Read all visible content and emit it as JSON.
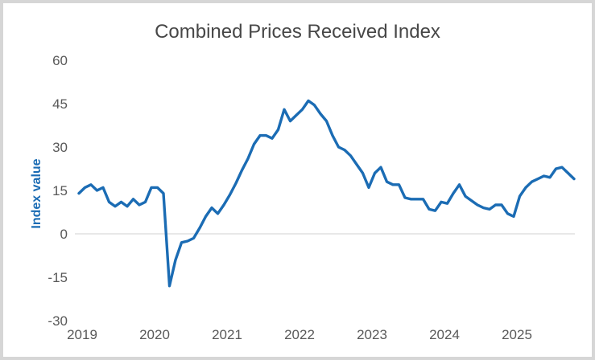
{
  "window": {
    "background": "#ffffff",
    "frame_color": "#d6d6d6"
  },
  "title": "Combined Prices Received Index",
  "y_axis": {
    "label": "Index value",
    "label_color": "#1b6cb4",
    "tick_color": "#595959",
    "ticks": [
      60,
      45,
      30,
      15,
      0,
      -15,
      -30
    ]
  },
  "x_axis": {
    "tick_color": "#595959",
    "ticks": [
      "2019",
      "2020",
      "2021",
      "2022",
      "2023",
      "2024",
      "2025"
    ]
  },
  "gridline": {
    "value": 0,
    "color": "#d9d9d9"
  },
  "chart_data": {
    "type": "line",
    "title": "Combined Prices Received Index",
    "xlabel": "",
    "ylabel": "Index value",
    "ylim": [
      -30,
      60
    ],
    "x_range": [
      "2019-01",
      "2025-11"
    ],
    "frequency": "monthly",
    "grid": "zero-line-only",
    "legend": "none",
    "line_color": "#1b6cb4",
    "series": [
      {
        "name": "Combined Prices Received Index",
        "start": "2019-01",
        "values": [
          14,
          16,
          17,
          15,
          16,
          11,
          9.5,
          11,
          9.5,
          12,
          10,
          11,
          16,
          16,
          14,
          -18,
          -9,
          -3,
          -2.5,
          -1.5,
          2,
          6,
          9,
          7,
          10,
          13.5,
          17.5,
          22,
          26,
          31,
          34,
          34,
          33,
          36,
          43,
          39,
          41,
          43,
          46,
          44.5,
          41.5,
          39,
          34,
          30,
          29,
          27,
          24,
          21,
          16,
          21,
          23,
          18,
          17,
          17,
          12.5,
          12,
          12,
          12,
          8.5,
          8,
          11,
          10.5,
          14,
          17,
          13,
          11.5,
          10,
          9,
          8.5,
          10,
          10,
          7,
          6,
          13,
          16,
          18,
          19,
          20,
          19.5,
          22.5,
          23,
          21,
          19
        ]
      }
    ],
    "annotations": {
      "notable_points": {
        "covid_trough_2020_04": -18,
        "peak_2022_03": 46,
        "trough_2025_01": 6,
        "last_value_2025_11": 19
      }
    }
  }
}
